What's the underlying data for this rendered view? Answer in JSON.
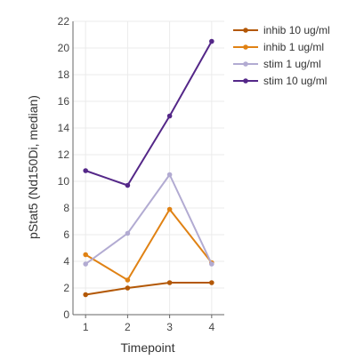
{
  "chart_data": {
    "type": "line",
    "title": "",
    "xlabel": "Timepoint",
    "ylabel": "pStat5 (Nd150Di, median)",
    "x": [
      1,
      2,
      3,
      4
    ],
    "xlim": [
      0.7,
      4.3
    ],
    "ylim": [
      0,
      22
    ],
    "yticks": [
      0,
      2,
      4,
      6,
      8,
      10,
      12,
      14,
      16,
      18,
      20,
      22
    ],
    "grid": true,
    "legend_position": "right",
    "series": [
      {
        "name": "inhib 10 ug/ml",
        "color": "#b35806",
        "values": [
          1.5,
          2.0,
          2.4,
          2.4
        ]
      },
      {
        "name": "inhib 1 ug/ml",
        "color": "#e08214",
        "values": [
          4.5,
          2.6,
          7.9,
          3.9
        ]
      },
      {
        "name": "stim 1 ug/ml",
        "color": "#b2abd2",
        "values": [
          3.8,
          6.1,
          10.5,
          3.8
        ]
      },
      {
        "name": "stim 10 ug/ml",
        "color": "#542788",
        "values": [
          10.8,
          9.7,
          14.9,
          20.5
        ]
      }
    ]
  }
}
